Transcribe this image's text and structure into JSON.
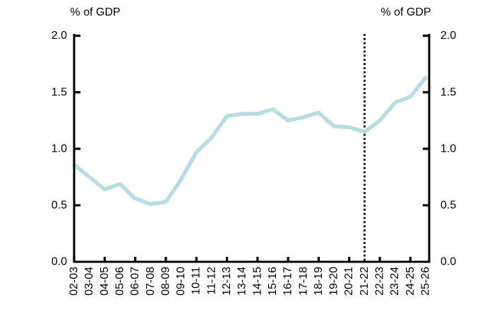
{
  "chart_data": {
    "type": "line",
    "title": "",
    "ylabel_left": "% of GDP",
    "ylabel_right": "% of GDP",
    "categories": [
      "02-03",
      "03-04",
      "04-05",
      "05-06",
      "06-07",
      "07-08",
      "08-09",
      "09-10",
      "10-11",
      "11-12",
      "12-13",
      "13-14",
      "14-15",
      "15-16",
      "16-17",
      "17-18",
      "18-19",
      "19-20",
      "20-21",
      "21-22",
      "22-23",
      "23-24",
      "24-25",
      "25-26"
    ],
    "values": [
      0.86,
      0.75,
      0.64,
      0.69,
      0.56,
      0.51,
      0.53,
      0.73,
      0.97,
      1.1,
      1.29,
      1.31,
      1.31,
      1.35,
      1.25,
      1.28,
      1.32,
      1.2,
      1.19,
      1.15,
      1.25,
      1.41,
      1.46,
      1.63
    ],
    "ylim": [
      0.0,
      2.0
    ],
    "yticks": [
      {
        "value": 0.0,
        "label": "0.0"
      },
      {
        "value": 0.5,
        "label": "0.5"
      },
      {
        "value": 1.0,
        "label": "1.0"
      },
      {
        "value": 1.5,
        "label": "1.5"
      },
      {
        "value": 2.0,
        "label": "2.0"
      }
    ],
    "grid": false,
    "legend": "none",
    "right_axis_mirrored": true,
    "xtick_rotation_deg": 90,
    "xtick_mark_interval": 2,
    "line_color": "#b7dce2",
    "axis_color": "#000000",
    "annotations": [
      {
        "type": "vertical_dotted_line",
        "at_category": "21-22",
        "color": "#000000"
      }
    ]
  }
}
